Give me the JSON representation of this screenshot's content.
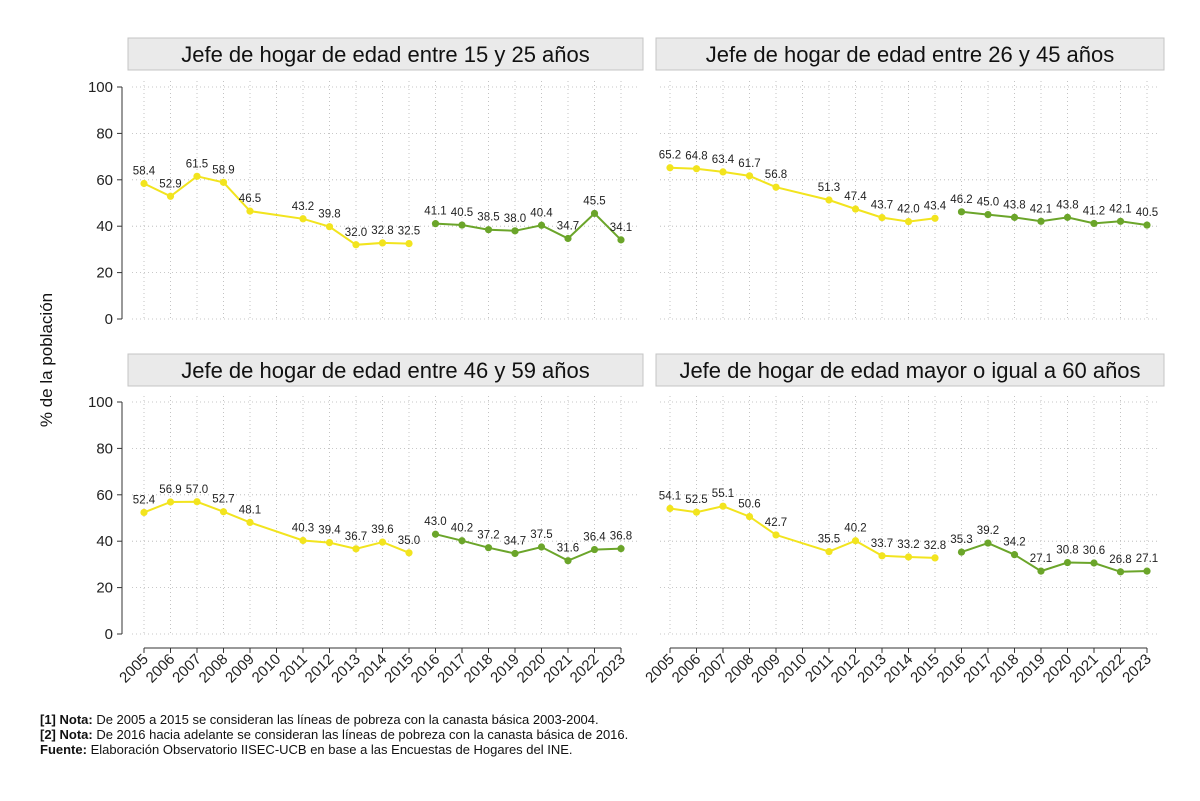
{
  "chart_data": {
    "type": "line",
    "ylabel": "% de la población",
    "ylim": [
      0,
      100
    ],
    "yticks": [
      "0",
      "20",
      "40",
      "60",
      "80",
      "100"
    ],
    "years": [
      "2005",
      "2006",
      "2007",
      "2008",
      "2009",
      "2010",
      "2011",
      "2012",
      "2013",
      "2014",
      "2015",
      "2016",
      "2017",
      "2018",
      "2019",
      "2020",
      "2021",
      "2022",
      "2023"
    ],
    "series_colors": {
      "canasta_2003_2004": "#f2e41e",
      "canasta_2016": "#6ba52a"
    },
    "panels": [
      {
        "title": "Jefe de hogar de edad entre 15 y 25 años",
        "series": [
          {
            "name": "canasta_2003_2004",
            "points": [
              {
                "year": "2005",
                "value": 58.4,
                "label": "58.4"
              },
              {
                "year": "2006",
                "value": 52.9,
                "label": "52.9"
              },
              {
                "year": "2007",
                "value": 61.5,
                "label": "61.5"
              },
              {
                "year": "2008",
                "value": 58.9,
                "label": "58.9"
              },
              {
                "year": "2009",
                "value": 46.5,
                "label": "46.5"
              },
              {
                "year": "2011",
                "value": 43.2,
                "label": "43.2"
              },
              {
                "year": "2012",
                "value": 39.8,
                "label": "39.8"
              },
              {
                "year": "2013",
                "value": 32.0,
                "label": "32.0"
              },
              {
                "year": "2014",
                "value": 32.8,
                "label": "32.8"
              },
              {
                "year": "2015",
                "value": 32.5,
                "label": "32.5"
              }
            ]
          },
          {
            "name": "canasta_2016",
            "points": [
              {
                "year": "2016",
                "value": 41.1,
                "label": "41.1"
              },
              {
                "year": "2017",
                "value": 40.5,
                "label": "40.5"
              },
              {
                "year": "2018",
                "value": 38.5,
                "label": "38.5"
              },
              {
                "year": "2019",
                "value": 38.0,
                "label": "38.0"
              },
              {
                "year": "2020",
                "value": 40.4,
                "label": "40.4"
              },
              {
                "year": "2021",
                "value": 34.7,
                "label": "34.7"
              },
              {
                "year": "2022",
                "value": 45.5,
                "label": "45.5"
              },
              {
                "year": "2023",
                "value": 34.1,
                "label": "34.1"
              }
            ]
          }
        ]
      },
      {
        "title": "Jefe de hogar de edad entre 26 y 45 años",
        "series": [
          {
            "name": "canasta_2003_2004",
            "points": [
              {
                "year": "2005",
                "value": 65.2,
                "label": "65.2"
              },
              {
                "year": "2006",
                "value": 64.8,
                "label": "64.8"
              },
              {
                "year": "2007",
                "value": 63.4,
                "label": "63.4"
              },
              {
                "year": "2008",
                "value": 61.7,
                "label": "61.7"
              },
              {
                "year": "2009",
                "value": 56.8,
                "label": "56.8"
              },
              {
                "year": "2011",
                "value": 51.3,
                "label": "51.3"
              },
              {
                "year": "2012",
                "value": 47.4,
                "label": "47.4"
              },
              {
                "year": "2013",
                "value": 43.7,
                "label": "43.7"
              },
              {
                "year": "2014",
                "value": 42.0,
                "label": "42.0"
              },
              {
                "year": "2015",
                "value": 43.4,
                "label": "43.4"
              }
            ]
          },
          {
            "name": "canasta_2016",
            "points": [
              {
                "year": "2016",
                "value": 46.2,
                "label": "46.2"
              },
              {
                "year": "2017",
                "value": 45.0,
                "label": "45.0"
              },
              {
                "year": "2018",
                "value": 43.8,
                "label": "43.8"
              },
              {
                "year": "2019",
                "value": 42.1,
                "label": "42.1"
              },
              {
                "year": "2020",
                "value": 43.8,
                "label": "43.8"
              },
              {
                "year": "2021",
                "value": 41.2,
                "label": "41.2"
              },
              {
                "year": "2022",
                "value": 42.1,
                "label": "42.1"
              },
              {
                "year": "2023",
                "value": 40.5,
                "label": "40.5"
              }
            ]
          }
        ]
      },
      {
        "title": "Jefe de hogar de edad entre 46 y 59 años",
        "series": [
          {
            "name": "canasta_2003_2004",
            "points": [
              {
                "year": "2005",
                "value": 52.4,
                "label": "52.4"
              },
              {
                "year": "2006",
                "value": 56.9,
                "label": "56.9"
              },
              {
                "year": "2007",
                "value": 57.0,
                "label": "57.0"
              },
              {
                "year": "2008",
                "value": 52.7,
                "label": "52.7"
              },
              {
                "year": "2009",
                "value": 48.1,
                "label": "48.1"
              },
              {
                "year": "2011",
                "value": 40.3,
                "label": "40.3"
              },
              {
                "year": "2012",
                "value": 39.4,
                "label": "39.4"
              },
              {
                "year": "2013",
                "value": 36.7,
                "label": "36.7"
              },
              {
                "year": "2014",
                "value": 39.6,
                "label": "39.6"
              },
              {
                "year": "2015",
                "value": 35.0,
                "label": "35.0"
              }
            ]
          },
          {
            "name": "canasta_2016",
            "points": [
              {
                "year": "2016",
                "value": 43.0,
                "label": "43.0"
              },
              {
                "year": "2017",
                "value": 40.2,
                "label": "40.2"
              },
              {
                "year": "2018",
                "value": 37.2,
                "label": "37.2"
              },
              {
                "year": "2019",
                "value": 34.7,
                "label": "34.7"
              },
              {
                "year": "2020",
                "value": 37.5,
                "label": "37.5"
              },
              {
                "year": "2021",
                "value": 31.6,
                "label": "31.6"
              },
              {
                "year": "2022",
                "value": 36.4,
                "label": "36.4"
              },
              {
                "year": "2023",
                "value": 36.8,
                "label": "36.8"
              }
            ]
          }
        ]
      },
      {
        "title": "Jefe de hogar de edad mayor o igual a 60 años",
        "series": [
          {
            "name": "canasta_2003_2004",
            "points": [
              {
                "year": "2005",
                "value": 54.1,
                "label": "54.1"
              },
              {
                "year": "2006",
                "value": 52.5,
                "label": "52.5"
              },
              {
                "year": "2007",
                "value": 55.1,
                "label": "55.1"
              },
              {
                "year": "2008",
                "value": 50.6,
                "label": "50.6"
              },
              {
                "year": "2009",
                "value": 42.7,
                "label": "42.7"
              },
              {
                "year": "2011",
                "value": 35.5,
                "label": "35.5"
              },
              {
                "year": "2012",
                "value": 40.2,
                "label": "40.2"
              },
              {
                "year": "2013",
                "value": 33.7,
                "label": "33.7"
              },
              {
                "year": "2014",
                "value": 33.2,
                "label": "33.2"
              },
              {
                "year": "2015",
                "value": 32.8,
                "label": "32.8"
              }
            ]
          },
          {
            "name": "canasta_2016",
            "points": [
              {
                "year": "2016",
                "value": 35.3,
                "label": "35.3"
              },
              {
                "year": "2017",
                "value": 39.2,
                "label": "39.2"
              },
              {
                "year": "2018",
                "value": 34.2,
                "label": "34.2"
              },
              {
                "year": "2019",
                "value": 27.1,
                "label": "27.1"
              },
              {
                "year": "2020",
                "value": 30.8,
                "label": "30.8"
              },
              {
                "year": "2021",
                "value": 30.6,
                "label": "30.6"
              },
              {
                "year": "2022",
                "value": 26.8,
                "label": "26.8"
              },
              {
                "year": "2023",
                "value": 27.1,
                "label": "27.1"
              }
            ]
          }
        ]
      }
    ]
  },
  "notes": {
    "note1_prefix": "[1] Nota:",
    "note1_text": " De 2005 a 2015 se consideran las líneas de pobreza con la canasta básica 2003-2004.",
    "note2_prefix": "[2] Nota:",
    "note2_text": " De 2016 hacia adelante se consideran las líneas de pobreza con la canasta básica de 2016.",
    "source_prefix": "Fuente:",
    "source_text": " Elaboración Observatorio IISEC-UCB en base a las Encuestas de Hogares del INE."
  }
}
